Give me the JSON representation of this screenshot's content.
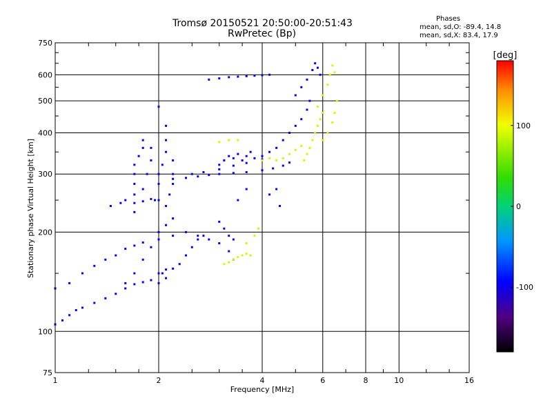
{
  "chart_data": {
    "type": "scatter",
    "title": "Tromsø 20150521 20:50:00-20:51:43",
    "subtitle": "RwPretec (Bp)",
    "xlabel": "Frequency [MHz]",
    "ylabel": "Stationary phase Virtual Height [km]",
    "x_scale": "log",
    "y_scale": "log",
    "xlim": [
      1,
      16
    ],
    "ylim": [
      75,
      750
    ],
    "x_ticks": [
      "1",
      "2",
      "4",
      "6",
      "8",
      "10",
      "16"
    ],
    "x_tick_values": [
      1,
      2,
      4,
      6,
      8,
      10,
      16
    ],
    "y_ticks": [
      "75",
      "100",
      "200",
      "300",
      "400",
      "500",
      "600",
      "750"
    ],
    "y_tick_values": [
      75,
      100,
      200,
      300,
      400,
      500,
      600,
      750
    ],
    "grid": true,
    "stats": {
      "header": "Phases",
      "o_line": "mean, sd,O: -89.4, 14.8",
      "x_line": "mean, sd,X: 83.4, 17.9"
    },
    "colorbar": {
      "label": "[deg]",
      "range": [
        -180,
        180
      ],
      "tick_labels": [
        "100",
        "0",
        "-100"
      ],
      "tick_values": [
        100,
        0,
        -100
      ]
    },
    "series": [
      {
        "name": "O",
        "phase_deg": -95,
        "points": [
          [
            1.0,
            105
          ],
          [
            1.05,
            108
          ],
          [
            1.1,
            112
          ],
          [
            1.15,
            116
          ],
          [
            1.2,
            118
          ],
          [
            1.3,
            122
          ],
          [
            1.4,
            126
          ],
          [
            1.5,
            130
          ],
          [
            1.6,
            135
          ],
          [
            1.7,
            139
          ],
          [
            1.8,
            141
          ],
          [
            1.9,
            143
          ],
          [
            2.0,
            150
          ],
          [
            2.1,
            154
          ],
          [
            1.0,
            135
          ],
          [
            1.1,
            140
          ],
          [
            1.2,
            150
          ],
          [
            1.3,
            158
          ],
          [
            1.4,
            165
          ],
          [
            1.5,
            170
          ],
          [
            1.6,
            178
          ],
          [
            1.7,
            182
          ],
          [
            1.8,
            186
          ],
          [
            2.0,
            190
          ],
          [
            2.2,
            195
          ],
          [
            1.6,
            140
          ],
          [
            1.7,
            150
          ],
          [
            1.8,
            165
          ],
          [
            1.9,
            180
          ],
          [
            2.0,
            200
          ],
          [
            2.1,
            210
          ],
          [
            2.2,
            220
          ],
          [
            1.45,
            240
          ],
          [
            1.55,
            245
          ],
          [
            1.6,
            250
          ],
          [
            1.7,
            245
          ],
          [
            1.8,
            248
          ],
          [
            1.9,
            252
          ],
          [
            2.0,
            250
          ],
          [
            1.7,
            230
          ],
          [
            1.7,
            260
          ],
          [
            1.7,
            280
          ],
          [
            1.7,
            300
          ],
          [
            1.7,
            320
          ],
          [
            1.75,
            340
          ],
          [
            1.8,
            360
          ],
          [
            1.8,
            380
          ],
          [
            1.95,
            250
          ],
          [
            2.0,
            280
          ],
          [
            2.0,
            300
          ],
          [
            2.05,
            320
          ],
          [
            2.1,
            350
          ],
          [
            2.1,
            380
          ],
          [
            2.1,
            420
          ],
          [
            2.0,
            480
          ],
          [
            2.1,
            240
          ],
          [
            2.15,
            260
          ],
          [
            2.2,
            280
          ],
          [
            2.2,
            300
          ],
          [
            2.2,
            330
          ],
          [
            2.2,
            290
          ],
          [
            2.4,
            292
          ],
          [
            2.6,
            295
          ],
          [
            2.8,
            298
          ],
          [
            3.0,
            300
          ],
          [
            3.3,
            302
          ],
          [
            3.6,
            304
          ],
          [
            4.0,
            308
          ],
          [
            4.3,
            312
          ],
          [
            4.6,
            318
          ],
          [
            4.8,
            325
          ],
          [
            2.5,
            300
          ],
          [
            2.7,
            304
          ],
          [
            3.0,
            310
          ],
          [
            3.3,
            318
          ],
          [
            3.6,
            324
          ],
          [
            4.0,
            332
          ],
          [
            3.0,
            320
          ],
          [
            3.1,
            330
          ],
          [
            3.2,
            340
          ],
          [
            3.3,
            335
          ],
          [
            3.4,
            345
          ],
          [
            3.5,
            330
          ],
          [
            3.6,
            340
          ],
          [
            3.7,
            350
          ],
          [
            3.8,
            335
          ],
          [
            4.0,
            340
          ],
          [
            4.2,
            350
          ],
          [
            4.4,
            360
          ],
          [
            4.6,
            380
          ],
          [
            4.8,
            400
          ],
          [
            5.0,
            420
          ],
          [
            5.2,
            440
          ],
          [
            5.4,
            470
          ],
          [
            5.5,
            500
          ],
          [
            5.0,
            520
          ],
          [
            5.2,
            550
          ],
          [
            5.4,
            580
          ],
          [
            5.6,
            620
          ],
          [
            5.7,
            650
          ],
          [
            5.8,
            630
          ],
          [
            5.9,
            600
          ],
          [
            2.8,
            580
          ],
          [
            3.0,
            585
          ],
          [
            3.2,
            590
          ],
          [
            3.4,
            592
          ],
          [
            3.6,
            594
          ],
          [
            3.8,
            596
          ],
          [
            4.0,
            598
          ],
          [
            4.2,
            600
          ],
          [
            2.4,
            200
          ],
          [
            2.6,
            195
          ],
          [
            2.8,
            190
          ],
          [
            3.0,
            185
          ],
          [
            3.2,
            175
          ],
          [
            3.3,
            165
          ],
          [
            1.8,
            270
          ],
          [
            1.85,
            300
          ],
          [
            1.9,
            330
          ],
          [
            1.9,
            360
          ],
          [
            4.2,
            260
          ],
          [
            4.4,
            270
          ],
          [
            4.5,
            240
          ],
          [
            3.4,
            250
          ],
          [
            3.6,
            270
          ],
          [
            3.0,
            215
          ],
          [
            3.1,
            205
          ],
          [
            3.2,
            195
          ],
          [
            3.3,
            190
          ],
          [
            2.0,
            140
          ],
          [
            2.05,
            150
          ],
          [
            2.1,
            145
          ],
          [
            2.2,
            155
          ],
          [
            2.3,
            160
          ],
          [
            2.4,
            170
          ],
          [
            2.5,
            180
          ],
          [
            2.6,
            190
          ],
          [
            2.7,
            195
          ]
        ]
      },
      {
        "name": "X",
        "phase_deg": 90,
        "points": [
          [
            5.3,
            330
          ],
          [
            5.4,
            345
          ],
          [
            5.5,
            360
          ],
          [
            5.6,
            380
          ],
          [
            5.7,
            400
          ],
          [
            5.8,
            420
          ],
          [
            5.9,
            440
          ],
          [
            6.0,
            460
          ],
          [
            5.8,
            480
          ],
          [
            6.0,
            520
          ],
          [
            6.2,
            560
          ],
          [
            6.3,
            600
          ],
          [
            6.4,
            640
          ],
          [
            6.5,
            610
          ],
          [
            6.0,
            380
          ],
          [
            6.2,
            400
          ],
          [
            6.4,
            430
          ],
          [
            6.5,
            460
          ],
          [
            6.6,
            500
          ],
          [
            4.4,
            330
          ],
          [
            4.6,
            335
          ],
          [
            4.8,
            345
          ],
          [
            5.0,
            355
          ],
          [
            5.2,
            365
          ],
          [
            3.1,
            160
          ],
          [
            3.2,
            162
          ],
          [
            3.3,
            165
          ],
          [
            3.4,
            168
          ],
          [
            3.5,
            170
          ],
          [
            3.6,
            172
          ],
          [
            3.7,
            170
          ],
          [
            3.0,
            375
          ],
          [
            3.2,
            380
          ],
          [
            3.4,
            380
          ],
          [
            4.0,
            330
          ],
          [
            4.2,
            335
          ],
          [
            3.6,
            185
          ],
          [
            3.8,
            195
          ],
          [
            3.9,
            205
          ]
        ]
      }
    ]
  }
}
